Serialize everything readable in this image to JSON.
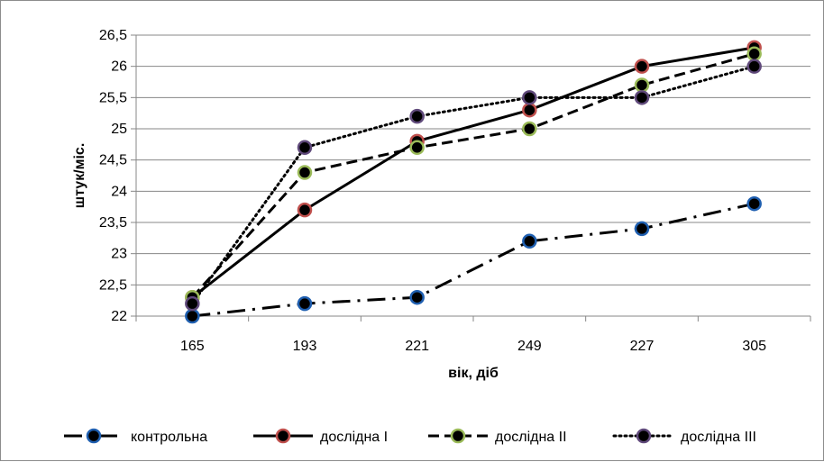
{
  "chart_data": {
    "type": "line",
    "categories": [
      "165",
      "193",
      "221",
      "249",
      "227",
      "305"
    ],
    "ylim": [
      22,
      26.5
    ],
    "yticks": [
      "22",
      "22,5",
      "23",
      "23,5",
      "24",
      "24,5",
      "25",
      "25,5",
      "26",
      "26,5"
    ],
    "xlabel": "вік, діб",
    "ylabel": "штук/міс.",
    "grid": true,
    "legend_position": "bottom",
    "series": [
      {
        "name": "контрольна",
        "values": [
          22.0,
          22.2,
          22.3,
          23.2,
          23.4,
          23.8
        ],
        "line_style": "dash-dot",
        "marker_fill": "#1f5fb0"
      },
      {
        "name": "дослідна І",
        "values": [
          22.3,
          23.7,
          24.8,
          25.3,
          26.0,
          26.3
        ],
        "line_style": "solid",
        "marker_fill": "#c0504d"
      },
      {
        "name": "дослідна ІІ",
        "values": [
          22.3,
          24.3,
          24.7,
          25.0,
          25.7,
          26.2
        ],
        "line_style": "dashed",
        "marker_fill": "#9bbb59"
      },
      {
        "name": "дослідна ІІІ",
        "values": [
          22.2,
          24.7,
          25.2,
          25.5,
          25.5,
          26.0
        ],
        "line_style": "dotted",
        "marker_fill": "#604a7b"
      }
    ]
  }
}
